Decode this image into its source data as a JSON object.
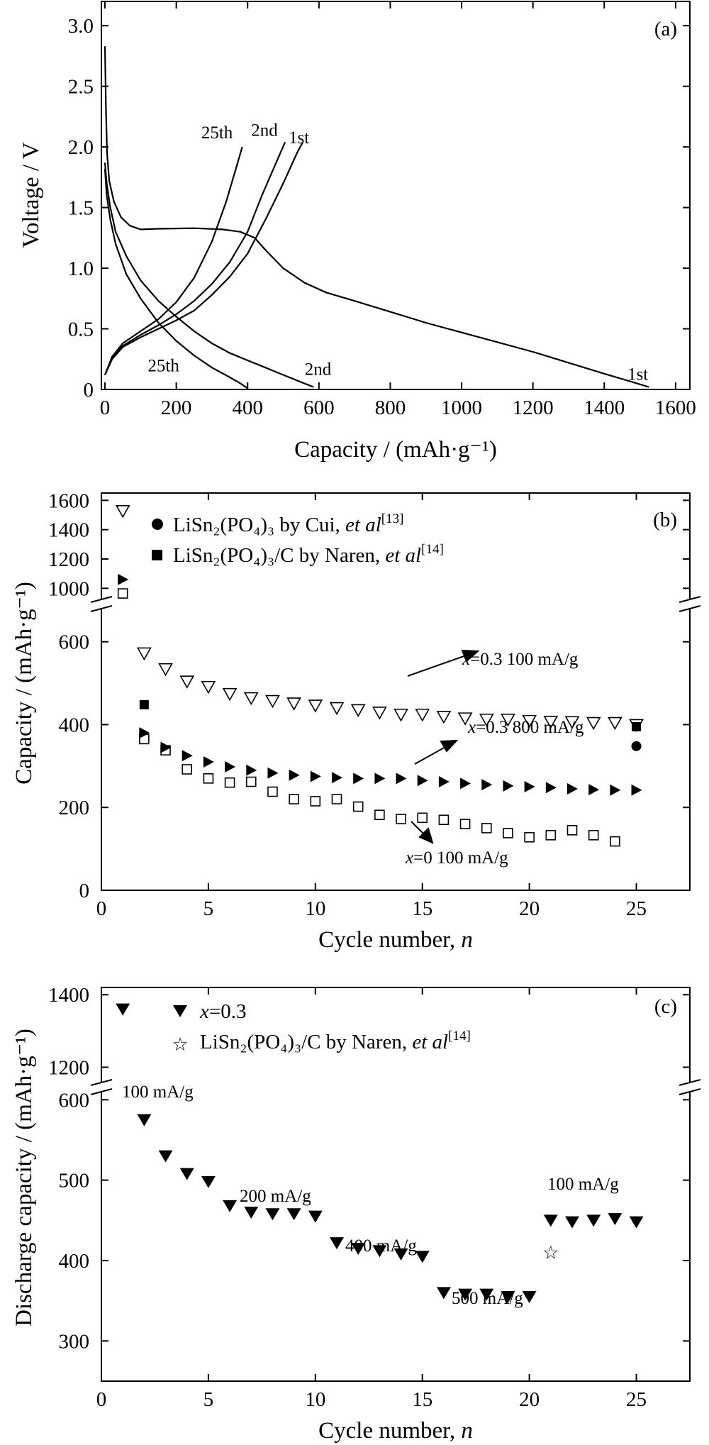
{
  "chart_data": [
    {
      "panel": "a",
      "type": "line",
      "panel_label": "(a)",
      "xlabel": "Capacity / (mAh·g⁻¹)",
      "ylabel": "Voltage / V",
      "xlim": [
        -10,
        1640
      ],
      "ylim": [
        0,
        3.2
      ],
      "xticks": [
        "0",
        "200",
        "400",
        "600",
        "800",
        "1000",
        "1200",
        "1400",
        "1600"
      ],
      "yticks": [
        "0",
        "0.5",
        "1.0",
        "1.5",
        "2.0",
        "2.5",
        "3.0"
      ],
      "annotations": [
        {
          "text": "25th",
          "x": 270,
          "y": 2.07
        },
        {
          "text": "2nd",
          "x": 410,
          "y": 2.09
        },
        {
          "text": "1st",
          "x": 515,
          "y": 2.03
        },
        {
          "text": "25th",
          "x": 120,
          "y": 0.15
        },
        {
          "text": "2nd",
          "x": 560,
          "y": 0.12
        },
        {
          "text": "1st",
          "x": 1465,
          "y": 0.08
        }
      ],
      "series": [
        {
          "name": "1st",
          "kind": "discharge",
          "points": [
            [
              0,
              2.83
            ],
            [
              3,
              2.3
            ],
            [
              6,
              1.95
            ],
            [
              12,
              1.72
            ],
            [
              25,
              1.55
            ],
            [
              45,
              1.42
            ],
            [
              70,
              1.35
            ],
            [
              100,
              1.32
            ],
            [
              150,
              1.325
            ],
            [
              250,
              1.33
            ],
            [
              330,
              1.32
            ],
            [
              380,
              1.3
            ],
            [
              420,
              1.25
            ],
            [
              450,
              1.15
            ],
            [
              500,
              1.0
            ],
            [
              560,
              0.88
            ],
            [
              620,
              0.8
            ],
            [
              700,
              0.73
            ],
            [
              800,
              0.64
            ],
            [
              900,
              0.55
            ],
            [
              1000,
              0.47
            ],
            [
              1100,
              0.39
            ],
            [
              1200,
              0.31
            ],
            [
              1300,
              0.22
            ],
            [
              1400,
              0.13
            ],
            [
              1480,
              0.06
            ],
            [
              1525,
              0.02
            ]
          ]
        },
        {
          "name": "1st",
          "kind": "charge",
          "points": [
            [
              0,
              0.12
            ],
            [
              20,
              0.25
            ],
            [
              50,
              0.35
            ],
            [
              100,
              0.43
            ],
            [
              150,
              0.5
            ],
            [
              200,
              0.57
            ],
            [
              250,
              0.65
            ],
            [
              300,
              0.78
            ],
            [
              350,
              0.93
            ],
            [
              400,
              1.12
            ],
            [
              450,
              1.4
            ],
            [
              500,
              1.7
            ],
            [
              540,
              1.96
            ],
            [
              555,
              2.04
            ]
          ]
        },
        {
          "name": "2nd",
          "kind": "discharge",
          "points": [
            [
              0,
              1.87
            ],
            [
              5,
              1.7
            ],
            [
              15,
              1.5
            ],
            [
              30,
              1.3
            ],
            [
              60,
              1.1
            ],
            [
              100,
              0.9
            ],
            [
              150,
              0.73
            ],
            [
              200,
              0.6
            ],
            [
              250,
              0.48
            ],
            [
              300,
              0.38
            ],
            [
              350,
              0.3
            ],
            [
              400,
              0.24
            ],
            [
              450,
              0.18
            ],
            [
              500,
              0.12
            ],
            [
              550,
              0.06
            ],
            [
              585,
              0.02
            ]
          ]
        },
        {
          "name": "2nd",
          "kind": "charge",
          "points": [
            [
              0,
              0.12
            ],
            [
              20,
              0.26
            ],
            [
              50,
              0.36
            ],
            [
              100,
              0.45
            ],
            [
              150,
              0.53
            ],
            [
              200,
              0.62
            ],
            [
              250,
              0.73
            ],
            [
              300,
              0.87
            ],
            [
              350,
              1.05
            ],
            [
              400,
              1.3
            ],
            [
              440,
              1.6
            ],
            [
              480,
              1.87
            ],
            [
              505,
              2.04
            ]
          ]
        },
        {
          "name": "25th",
          "kind": "discharge",
          "points": [
            [
              0,
              1.82
            ],
            [
              5,
              1.6
            ],
            [
              15,
              1.4
            ],
            [
              30,
              1.2
            ],
            [
              60,
              0.95
            ],
            [
              100,
              0.75
            ],
            [
              150,
              0.55
            ],
            [
              200,
              0.4
            ],
            [
              250,
              0.28
            ],
            [
              300,
              0.18
            ],
            [
              350,
              0.1
            ],
            [
              380,
              0.05
            ],
            [
              400,
              0.01
            ]
          ]
        },
        {
          "name": "25th",
          "kind": "charge",
          "points": [
            [
              0,
              0.12
            ],
            [
              20,
              0.27
            ],
            [
              50,
              0.38
            ],
            [
              100,
              0.48
            ],
            [
              150,
              0.58
            ],
            [
              200,
              0.72
            ],
            [
              250,
              0.92
            ],
            [
              300,
              1.22
            ],
            [
              340,
              1.55
            ],
            [
              370,
              1.85
            ],
            [
              385,
              2.0
            ]
          ]
        }
      ]
    },
    {
      "panel": "b",
      "type": "scatter",
      "panel_label": "(b)",
      "xlabel": "Cycle number, ",
      "xlabel_italic": "n",
      "ylabel": "Capacity / (mAh·g⁻¹)",
      "xlim": [
        0,
        27.5
      ],
      "ylim_lower": [
        0,
        680
      ],
      "ylim_upper": [
        900,
        1650
      ],
      "xticks": [
        "0",
        "5",
        "10",
        "15",
        "20",
        "25"
      ],
      "yticks_lower": [
        "0",
        "200",
        "400",
        "600"
      ],
      "yticks_upper": [
        "1000",
        "1200",
        "1400",
        "1600"
      ],
      "legend": [
        {
          "marker": "circle",
          "text": "LiSn₂(PO₄)₃ by Cui, ",
          "italic": "et al",
          "sup": "[13]"
        },
        {
          "marker": "square",
          "text": "LiSn₂(PO₄)₃/C by Naren, ",
          "italic": "et al",
          "sup": "[14]"
        }
      ],
      "annotations": [
        {
          "italic": "x",
          "text": "=0.3  100 mA/g"
        },
        {
          "italic": "x",
          "text": "=0.3  800 mA/g"
        },
        {
          "italic": "x",
          "text": "=0  100 mA/g"
        }
      ],
      "series": [
        {
          "name": "x=0.3 100 mA/g",
          "marker": "triangle-down-open",
          "x": [
            1,
            2,
            3,
            4,
            5,
            6,
            7,
            8,
            9,
            10,
            11,
            12,
            13,
            14,
            15,
            16,
            17,
            18,
            19,
            20,
            21,
            22,
            23,
            24,
            25
          ],
          "y": [
            1530,
            573,
            535,
            505,
            492,
            475,
            465,
            458,
            452,
            447,
            441,
            436,
            430,
            425,
            425,
            420,
            416,
            413,
            413,
            410,
            408,
            407,
            405,
            405,
            400
          ]
        },
        {
          "name": "x=0.3 800 mA/g",
          "marker": "triangle-right-filled",
          "x": [
            1,
            2,
            3,
            4,
            5,
            6,
            7,
            8,
            9,
            10,
            11,
            12,
            13,
            14,
            15,
            16,
            17,
            18,
            19,
            20,
            21,
            22,
            23,
            24,
            25
          ],
          "y": [
            1060,
            380,
            345,
            325,
            310,
            298,
            290,
            283,
            278,
            275,
            272,
            270,
            270,
            270,
            265,
            262,
            258,
            255,
            252,
            250,
            248,
            245,
            243,
            242,
            242
          ]
        },
        {
          "name": "x=0 100 mA/g",
          "marker": "square-open",
          "x": [
            1,
            2,
            3,
            4,
            5,
            6,
            7,
            8,
            9,
            10,
            11,
            12,
            13,
            14,
            15,
            16,
            17,
            18,
            19,
            20,
            21,
            22,
            23,
            24
          ],
          "y": [
            965,
            365,
            338,
            292,
            270,
            260,
            262,
            238,
            220,
            215,
            220,
            202,
            182,
            172,
            175,
            170,
            160,
            150,
            138,
            128,
            133,
            145,
            133,
            118
          ]
        },
        {
          "name": "LiSn2(PO4)3 by Cui",
          "marker": "circle-filled",
          "x": [
            25
          ],
          "y": [
            348
          ]
        },
        {
          "name": "LiSn2(PO4)3/C by Naren",
          "marker": "square-filled",
          "x": [
            2,
            25
          ],
          "y": [
            448,
            395
          ]
        }
      ]
    },
    {
      "panel": "c",
      "type": "scatter",
      "panel_label": "(c)",
      "xlabel": "Cycle number, ",
      "xlabel_italic": "n",
      "ylabel": "Discharge capacity / (mAh·g⁻¹)",
      "xlim": [
        0,
        27.5
      ],
      "ylim_lower": [
        250,
        610
      ],
      "ylim_upper": [
        1150,
        1420
      ],
      "xticks": [
        "0",
        "5",
        "10",
        "15",
        "20",
        "25"
      ],
      "yticks_lower": [
        "300",
        "400",
        "500",
        "600"
      ],
      "yticks_upper": [
        "1200",
        "1400"
      ],
      "legend": [
        {
          "marker": "triangle-down-filled",
          "italic": "x",
          "text": "=0.3"
        },
        {
          "marker": "star",
          "text": "LiSn₂(PO₄)₃/C by Naren, ",
          "italic2": "et al",
          "sup": "[14]"
        }
      ],
      "annotations": [
        {
          "text": "100 mA/g"
        },
        {
          "text": "200 mA/g"
        },
        {
          "text": "400 mA/g"
        },
        {
          "text": "500 mA/g"
        },
        {
          "text": "100 mA/g"
        }
      ],
      "series": [
        {
          "name": "x=0.3",
          "marker": "triangle-down-filled",
          "x": [
            1,
            2,
            3,
            4,
            5,
            6,
            7,
            8,
            9,
            10,
            11,
            12,
            13,
            14,
            15,
            16,
            17,
            18,
            19,
            20,
            21,
            22,
            23,
            24,
            25
          ],
          "y": [
            1360,
            575,
            530,
            508,
            498,
            468,
            460,
            458,
            458,
            455,
            422,
            415,
            412,
            408,
            405,
            360,
            358,
            358,
            355,
            355,
            450,
            448,
            450,
            452,
            448
          ]
        },
        {
          "name": "LiSn2(PO4)3/C by Naren",
          "marker": "star-open",
          "x": [
            21
          ],
          "y": [
            410
          ]
        }
      ]
    }
  ]
}
